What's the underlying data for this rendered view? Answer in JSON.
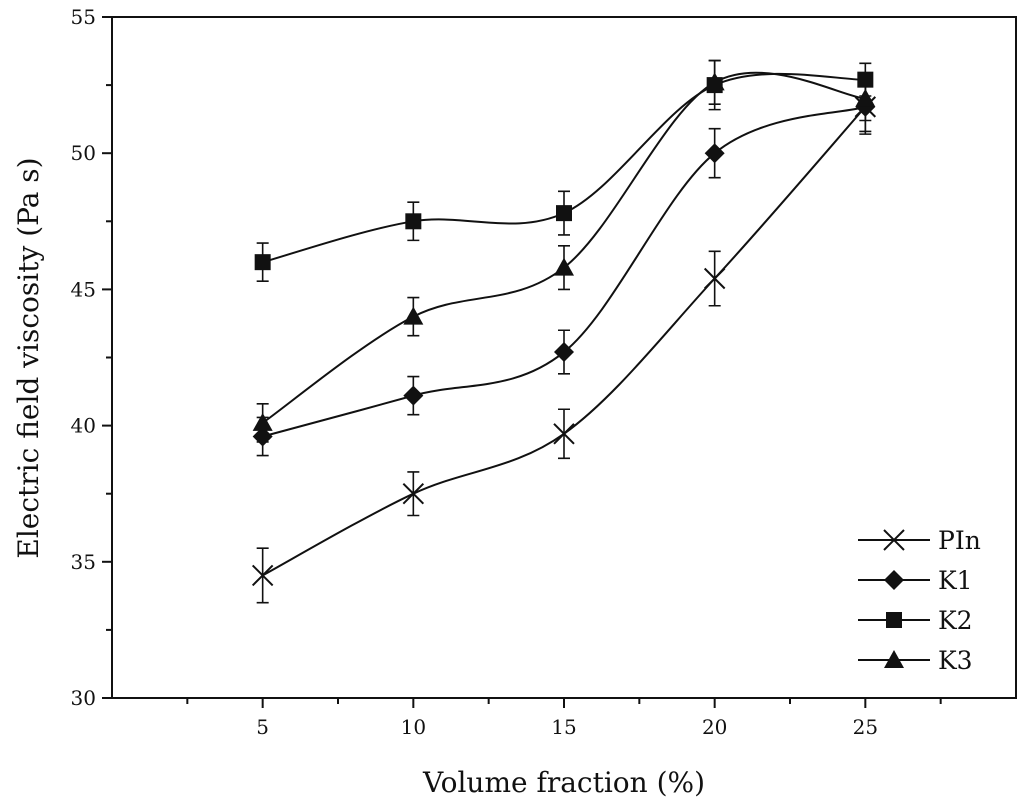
{
  "chart_data": {
    "type": "line",
    "title": "",
    "xlabel": "Volume fraction (%)",
    "ylabel": "Electric field viscosity (Pa s)",
    "xlim": [
      0,
      30
    ],
    "ylim": [
      30,
      55
    ],
    "x": [
      5,
      10,
      15,
      20,
      25
    ],
    "xticks": [
      5,
      10,
      15,
      20,
      25
    ],
    "yticks": [
      30,
      35,
      40,
      45,
      50,
      55
    ],
    "legend_position": "bottom-right",
    "grid": false,
    "series": [
      {
        "name": "PIn",
        "marker": "cross",
        "values": [
          34.5,
          37.5,
          39.7,
          45.4,
          51.7
        ],
        "errors": [
          1.0,
          0.8,
          0.9,
          1.0,
          1.0
        ]
      },
      {
        "name": "K1",
        "marker": "diamond",
        "values": [
          39.6,
          41.1,
          42.7,
          50.0,
          51.7
        ],
        "errors": [
          0.7,
          0.7,
          0.8,
          0.9,
          0.9
        ]
      },
      {
        "name": "K2",
        "marker": "square",
        "values": [
          46.0,
          47.5,
          47.8,
          52.5,
          52.7
        ],
        "errors": [
          0.7,
          0.7,
          0.8,
          0.9,
          0.6
        ]
      },
      {
        "name": "K3",
        "marker": "triangle",
        "values": [
          40.1,
          44.0,
          45.8,
          52.6,
          52.0
        ],
        "errors": [
          0.7,
          0.7,
          0.8,
          0.8,
          0.8
        ]
      }
    ]
  }
}
